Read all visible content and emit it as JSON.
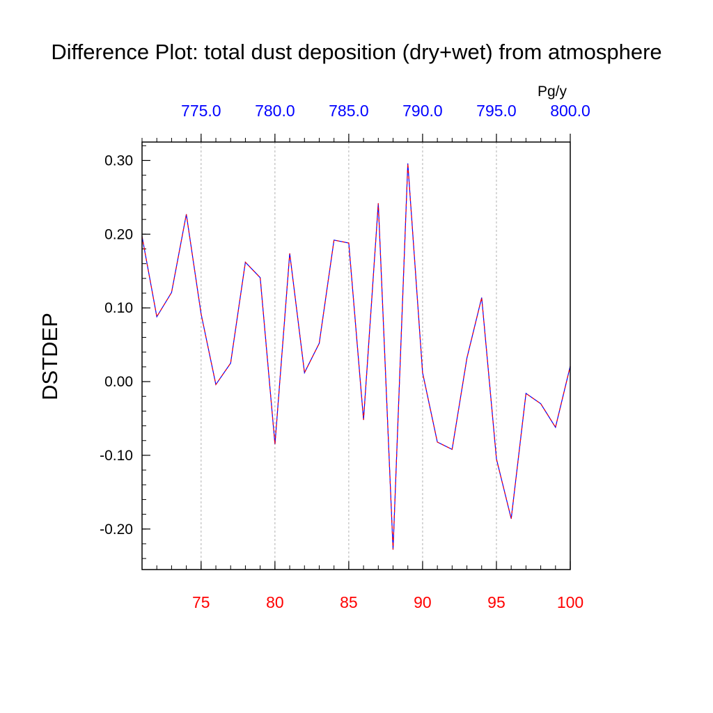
{
  "chart_data": {
    "type": "line",
    "title": "Difference Plot: total dust deposition (dry+wet) from atmosphere",
    "ylabel": "DSTDEP",
    "top_axis_unit": "Pg/y",
    "xlim": [
      71,
      100
    ],
    "ylim": [
      -0.255,
      0.325
    ],
    "x_ticks": [
      75,
      80,
      85,
      90,
      95,
      100
    ],
    "x_tick_labels": [
      "75",
      "80",
      "85",
      "90",
      "95",
      "100"
    ],
    "x_tick_color": "#ff0000",
    "y_ticks": [
      -0.2,
      -0.1,
      0.0,
      0.1,
      0.2,
      0.3
    ],
    "y_tick_labels": [
      "-0.20",
      "-0.10",
      "0.00",
      "0.10",
      "0.20",
      "0.30"
    ],
    "top_axis_ticks": [
      75,
      80,
      85,
      90,
      95,
      100
    ],
    "top_axis_tick_labels": [
      "775.0",
      "780.0",
      "785.0",
      "790.0",
      "795.0",
      "800.0"
    ],
    "top_axis_color": "#0000ff",
    "grid": "vertical dashed at major x ticks",
    "series": [
      {
        "line_colors": [
          "#ff0000",
          "#0000ff"
        ],
        "style": "dashed red/blue",
        "x": [
          71,
          72,
          73,
          74,
          75,
          76,
          77,
          78,
          79,
          80,
          81,
          82,
          83,
          84,
          85,
          86,
          87,
          88,
          89,
          90,
          91,
          92,
          93,
          94,
          95,
          96,
          97,
          98,
          99,
          100
        ],
        "values": [
          0.197,
          0.088,
          0.121,
          0.227,
          0.092,
          -0.004,
          0.025,
          0.162,
          0.141,
          -0.085,
          0.174,
          0.012,
          0.052,
          0.192,
          0.188,
          -0.052,
          0.242,
          -0.228,
          0.296,
          0.012,
          -0.082,
          -0.092,
          0.032,
          0.114,
          -0.105,
          -0.186,
          -0.016,
          -0.03,
          -0.062,
          0.021
        ]
      }
    ]
  }
}
